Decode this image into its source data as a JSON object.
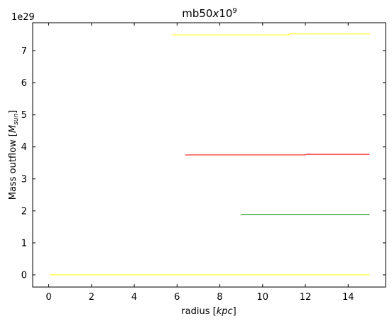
{
  "chart_data": {
    "type": "line",
    "title": "mb50x10^9",
    "title_base": "mb50",
    "title_italic": "x",
    "title_num": "10",
    "title_exp": "9",
    "xlabel": "radius [kpc]",
    "xlabel_text": "radius [",
    "xlabel_unit": "kpc",
    "xlabel_close": "]",
    "ylabel": "Mass outflow [M_sun]",
    "ylabel_text": "Mass outflow [",
    "ylabel_unit": "M",
    "ylabel_sub": "sun",
    "ylabel_close": "]",
    "y_offset_label": "1e29",
    "xlim": [
      -0.75,
      15.75
    ],
    "ylim": [
      -0.38,
      7.88
    ],
    "xticks": [
      0,
      2,
      4,
      6,
      8,
      10,
      12,
      14
    ],
    "xtick_labels": [
      "0",
      "2",
      "4",
      "6",
      "8",
      "10",
      "12",
      "14"
    ],
    "yticks": [
      0,
      1,
      2,
      3,
      4,
      5,
      6,
      7
    ],
    "ytick_labels": [
      "0",
      "1",
      "2",
      "3",
      "4",
      "5",
      "6",
      "7"
    ],
    "grid": false,
    "series": [
      {
        "color": "#ffff00",
        "x": [
          0.05,
          15.0
        ],
        "y": [
          0.0,
          0.0
        ]
      },
      {
        "color": "#008000",
        "x": [
          8.97,
          9.05,
          15.0
        ],
        "y": [
          1.87,
          1.89,
          1.89
        ]
      },
      {
        "color": "#ff0000",
        "x": [
          6.38,
          12.0,
          12.05,
          15.0
        ],
        "y": [
          3.75,
          3.75,
          3.77,
          3.77
        ]
      },
      {
        "color": "#ffff00",
        "x": [
          5.77,
          11.2,
          11.25,
          15.0
        ],
        "y": [
          7.5,
          7.5,
          7.53,
          7.53
        ]
      }
    ]
  }
}
